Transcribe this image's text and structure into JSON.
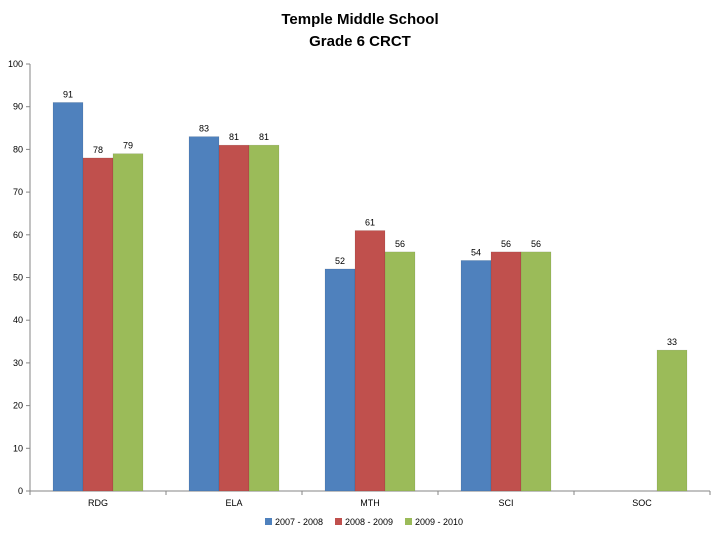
{
  "chart_data": {
    "type": "bar",
    "title": "Temple Middle School",
    "subtitle": "Grade 6 CRCT",
    "xlabel": "",
    "ylabel": "",
    "categories": [
      "RDG",
      "ELA",
      "MTH",
      "SCI",
      "SOC"
    ],
    "series": [
      {
        "name": "2007 - 2008",
        "color": "#4F81BD",
        "values": [
          91,
          83,
          52,
          54,
          null
        ]
      },
      {
        "name": "2008 - 2009",
        "color": "#C0504D",
        "values": [
          78,
          81,
          61,
          56,
          null
        ]
      },
      {
        "name": "2009 - 2010",
        "color": "#9BBB59",
        "values": [
          79,
          81,
          56,
          56,
          33
        ]
      }
    ],
    "ylim": [
      0,
      100
    ],
    "yticks": [
      0,
      10,
      20,
      30,
      40,
      50,
      60,
      70,
      80,
      90,
      100
    ],
    "grid": false,
    "legend_position": "bottom"
  }
}
